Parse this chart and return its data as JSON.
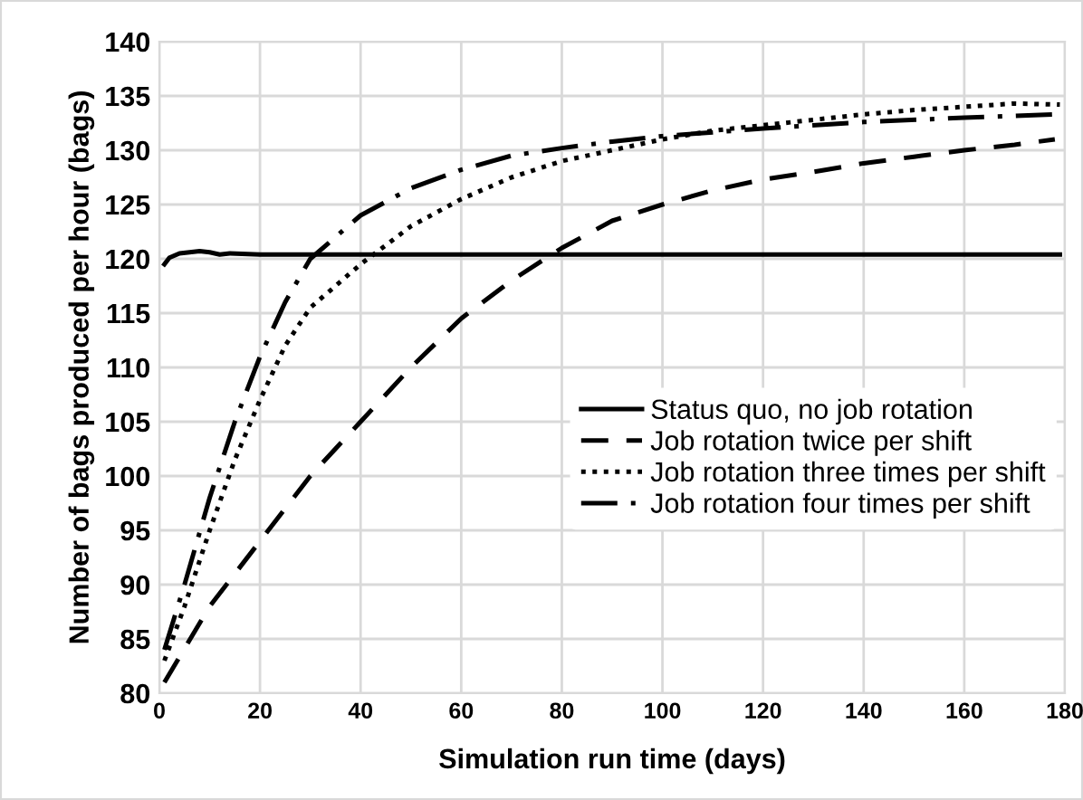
{
  "chart_data": {
    "type": "line",
    "xlabel": "Simulation run time (days)",
    "ylabel": "Number of bags produced per hour (bags)",
    "xlim": [
      0,
      180
    ],
    "xticks": [
      0,
      20,
      40,
      60,
      80,
      100,
      120,
      140,
      160,
      180
    ],
    "ylim": [
      80,
      140
    ],
    "yticks": [
      80,
      85,
      90,
      95,
      100,
      105,
      110,
      115,
      120,
      125,
      130,
      135,
      140
    ],
    "grid": true,
    "legend": "right",
    "marker": "none",
    "series": [
      {
        "name": "Status quo, no job rotation",
        "color": "#000000",
        "line_style": "solid",
        "x": [
          1,
          2,
          4,
          6,
          8,
          10,
          12,
          14,
          20,
          40,
          80,
          120,
          160,
          179
        ],
        "values": [
          119.5,
          120.1,
          120.5,
          120.6,
          120.7,
          120.6,
          120.4,
          120.5,
          120.4,
          120.4,
          120.4,
          120.4,
          120.4,
          120.4
        ]
      },
      {
        "name": "Job rotation twice per shift",
        "color": "#000000",
        "line_style": "dashed",
        "x": [
          1,
          10,
          20,
          30,
          40,
          50,
          60,
          70,
          80,
          90,
          100,
          110,
          120,
          130,
          140,
          150,
          160,
          170,
          178
        ],
        "values": [
          81,
          88,
          94,
          100,
          105,
          110,
          114.5,
          118,
          121,
          123.5,
          125,
          126.3,
          127.3,
          128,
          128.8,
          129.4,
          130,
          130.5,
          131
        ]
      },
      {
        "name": "Job rotation three times per shift",
        "color": "#000000",
        "line_style": "dotted",
        "x": [
          1,
          5,
          10,
          15,
          20,
          25,
          30,
          40,
          50,
          60,
          70,
          80,
          90,
          100,
          110,
          120,
          130,
          140,
          150,
          160,
          170,
          179
        ],
        "values": [
          83,
          88,
          95,
          101.5,
          107,
          112,
          115.5,
          119.5,
          123,
          125.5,
          127.5,
          129,
          130,
          131,
          131.8,
          132.3,
          132.8,
          133.3,
          133.7,
          134,
          134.3,
          134.2
        ]
      },
      {
        "name": "Job rotation four times per shift",
        "color": "#000000",
        "line_style": "dashdot",
        "x": [
          1,
          5,
          10,
          15,
          20,
          25,
          30,
          40,
          50,
          60,
          70,
          80,
          90,
          100,
          120,
          140,
          160,
          178
        ],
        "values": [
          84,
          90,
          98,
          105,
          111,
          116,
          120,
          124,
          126.5,
          128.2,
          129.5,
          130.2,
          130.8,
          131.3,
          132,
          132.6,
          133,
          133.3
        ]
      }
    ]
  }
}
